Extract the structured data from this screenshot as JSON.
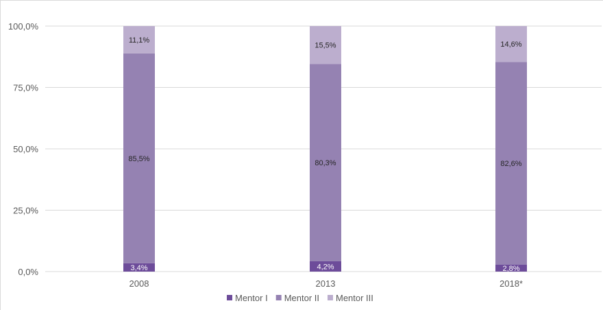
{
  "chart_data": {
    "type": "bar",
    "stacked": true,
    "percent_stacked": true,
    "categories": [
      "2008",
      "2013",
      "2018*"
    ],
    "series": [
      {
        "name": "Mentor I",
        "values": [
          3.4,
          4.2,
          2.8
        ],
        "labels": [
          "3,4%",
          "4,2%",
          "2,8%"
        ],
        "color": "#6d4c9a",
        "label_color": "#ffffff"
      },
      {
        "name": "Mentor II",
        "values": [
          85.5,
          80.3,
          82.6
        ],
        "labels": [
          "85,5%",
          "80,3%",
          "82,6%"
        ],
        "color": "#9582b2",
        "label_color": "#262626"
      },
      {
        "name": "Mentor III",
        "values": [
          11.1,
          15.5,
          14.6
        ],
        "labels": [
          "11,1%",
          "15,5%",
          "14,6%"
        ],
        "color": "#bcaece",
        "label_color": "#262626"
      }
    ],
    "ylim": [
      0,
      100
    ],
    "y_ticks": [
      0,
      25,
      50,
      75,
      100
    ],
    "y_tick_labels": [
      "0,0%",
      "25,0%",
      "50,0%",
      "75,0%",
      "100,0%"
    ],
    "grid": true,
    "legend_position": "bottom",
    "title": "",
    "xlabel": "",
    "ylabel": "",
    "colors": {
      "gridline": "#d9d9d9",
      "tick_text": "#595959"
    }
  }
}
